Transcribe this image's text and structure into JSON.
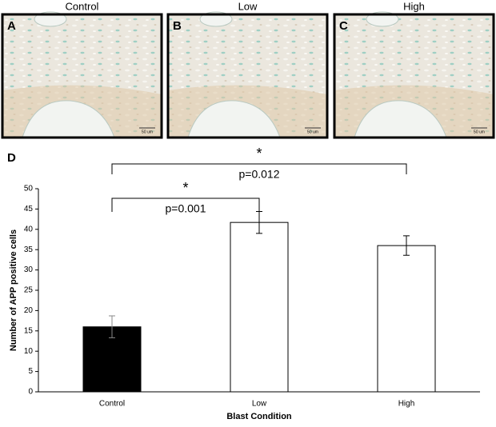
{
  "figure": {
    "panels": [
      {
        "title": "Control",
        "letter": "A",
        "scale": "50 um"
      },
      {
        "title": "Low",
        "letter": "B",
        "scale": "50 um"
      },
      {
        "title": "High",
        "letter": "C",
        "scale": "50 um"
      }
    ]
  },
  "chart_data": {
    "type": "bar",
    "panel_letter": "D",
    "categories": [
      "Control",
      "Low",
      "High"
    ],
    "values": [
      16,
      41.7,
      36
    ],
    "errors": [
      2.7,
      2.7,
      2.4
    ],
    "colors": [
      "#000000",
      "#ffffff",
      "#ffffff"
    ],
    "ylim": [
      0,
      50
    ],
    "yticks": [
      0,
      5,
      10,
      15,
      20,
      25,
      30,
      35,
      40,
      45,
      50
    ],
    "y_label": "Number of APP positive cells",
    "x_label": "Blast Condition",
    "comparisons": [
      {
        "marker": "*",
        "label": "p=0.001"
      },
      {
        "marker": "*",
        "label": "p=0.012"
      }
    ]
  }
}
